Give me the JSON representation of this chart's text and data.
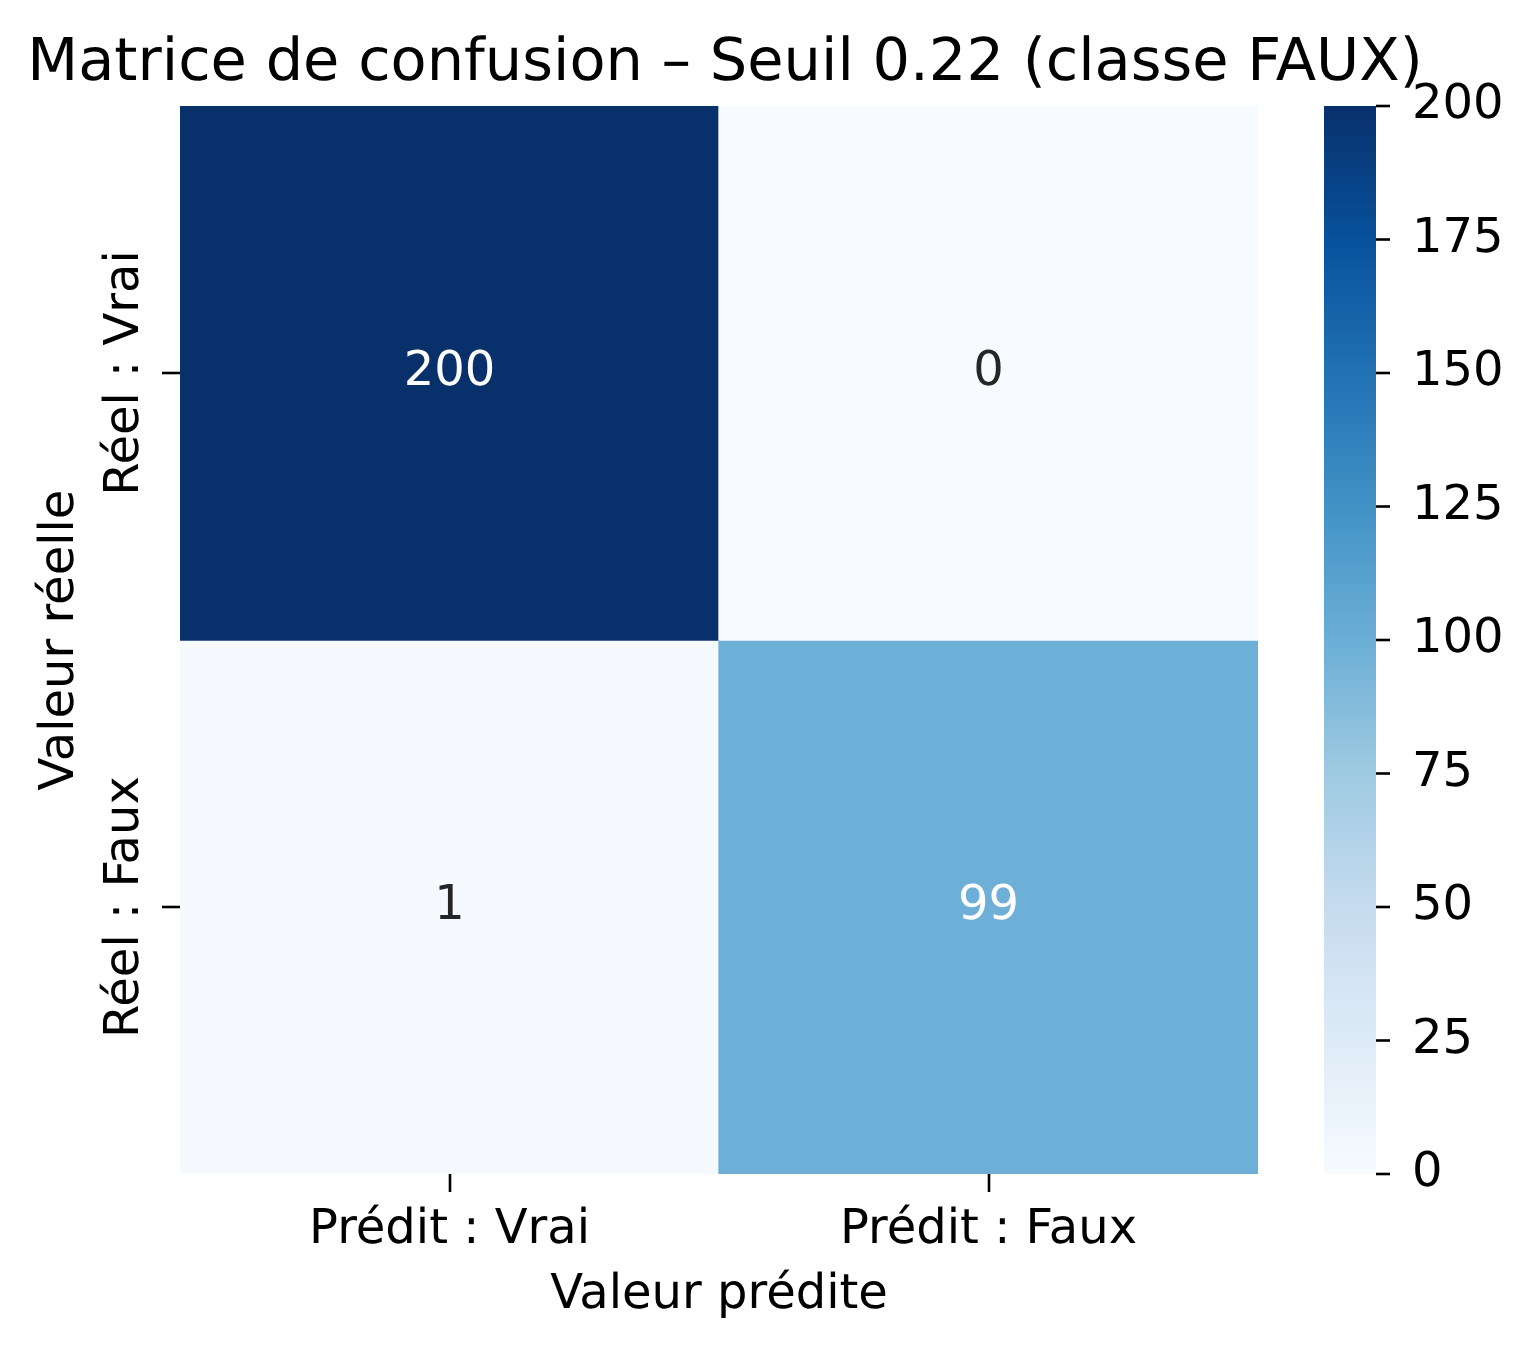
{
  "chart_data": {
    "type": "heatmap",
    "title": "Matrice de confusion – Seuil 0.22 (classe FAUX)",
    "xlabel": "Valeur prédite",
    "ylabel": "Valeur réelle",
    "categories": [
      "Prédit : Vrai",
      "Prédit : Faux"
    ],
    "y_categories": [
      "Réel : Vrai",
      "Réel : Faux"
    ],
    "cells": [
      [
        200,
        0
      ],
      [
        1,
        99
      ]
    ],
    "clim": [
      0,
      200
    ],
    "cticks": [
      0,
      25,
      50,
      75,
      100,
      125,
      150,
      175,
      200
    ],
    "data_labels": true
  }
}
